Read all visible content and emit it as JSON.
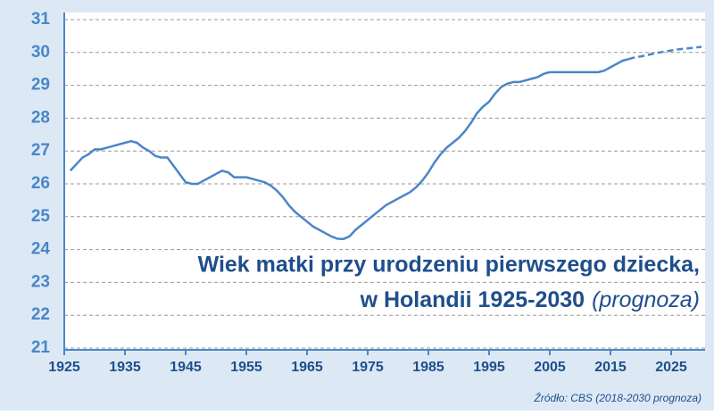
{
  "chart_data": {
    "type": "line",
    "title": "Wiek matki przy urodzeniu pierwszego dziecka,",
    "subtitle": "w Holandii 1925-2030",
    "subtitle_note": "(prognoza)",
    "source": "Źródło: CBS (2018-2030 prognoza)",
    "x": [
      1926,
      1927,
      1928,
      1929,
      1930,
      1931,
      1932,
      1933,
      1934,
      1935,
      1936,
      1937,
      1938,
      1939,
      1940,
      1941,
      1942,
      1943,
      1944,
      1945,
      1946,
      1947,
      1948,
      1949,
      1950,
      1951,
      1952,
      1953,
      1954,
      1955,
      1956,
      1957,
      1958,
      1959,
      1960,
      1961,
      1962,
      1963,
      1964,
      1965,
      1966,
      1967,
      1968,
      1969,
      1970,
      1971,
      1972,
      1973,
      1974,
      1975,
      1976,
      1977,
      1978,
      1979,
      1980,
      1981,
      1982,
      1983,
      1984,
      1985,
      1986,
      1987,
      1988,
      1989,
      1990,
      1991,
      1992,
      1993,
      1994,
      1995,
      1996,
      1997,
      1998,
      1999,
      2000,
      2001,
      2002,
      2003,
      2004,
      2005,
      2006,
      2007,
      2008,
      2009,
      2010,
      2011,
      2012,
      2013,
      2014,
      2015,
      2016,
      2017,
      2018,
      2019,
      2020,
      2021,
      2022,
      2023,
      2024,
      2025,
      2026,
      2027,
      2028,
      2029,
      2030
    ],
    "series": [
      {
        "color": "#4a86c8",
        "dashed": false,
        "values": [
          26.4,
          26.6,
          26.8,
          26.9,
          27.05,
          27.05,
          27.1,
          27.15,
          27.2,
          27.25,
          27.3,
          27.25,
          27.1,
          27.0,
          26.85,
          26.8,
          26.8,
          26.55,
          26.3,
          26.05,
          26.0,
          26.0,
          26.1,
          26.2,
          26.3,
          26.4,
          26.35,
          26.2,
          26.2,
          26.2,
          26.15,
          26.1,
          26.05,
          25.95,
          25.8,
          25.6,
          25.35,
          25.15,
          25.0,
          24.85,
          24.7,
          24.6,
          24.5,
          24.4,
          24.33,
          24.32,
          24.4,
          24.6,
          24.75,
          24.9,
          25.05,
          25.2,
          25.35,
          25.45,
          25.55,
          25.65,
          25.75,
          25.9,
          26.1,
          26.35,
          26.65,
          26.9,
          27.1,
          27.25,
          27.4,
          27.6,
          27.85,
          28.15,
          28.35,
          28.5,
          28.75,
          28.95,
          29.05,
          29.1,
          29.1,
          29.15,
          29.2,
          29.25,
          29.35,
          29.4,
          29.4,
          29.4,
          29.4,
          29.4,
          29.4,
          29.4,
          29.4,
          29.4,
          29.45,
          29.55,
          29.65,
          29.75,
          29.8,
          null,
          null,
          null,
          null,
          null,
          null,
          null,
          null,
          null,
          null,
          null,
          null
        ]
      },
      {
        "color": "#4a86c8",
        "dashed": true,
        "values": [
          null,
          null,
          null,
          null,
          null,
          null,
          null,
          null,
          null,
          null,
          null,
          null,
          null,
          null,
          null,
          null,
          null,
          null,
          null,
          null,
          null,
          null,
          null,
          null,
          null,
          null,
          null,
          null,
          null,
          null,
          null,
          null,
          null,
          null,
          null,
          null,
          null,
          null,
          null,
          null,
          null,
          null,
          null,
          null,
          null,
          null,
          null,
          null,
          null,
          null,
          null,
          null,
          null,
          null,
          null,
          null,
          null,
          null,
          null,
          null,
          null,
          null,
          null,
          null,
          null,
          null,
          null,
          null,
          null,
          null,
          null,
          null,
          null,
          null,
          null,
          null,
          null,
          null,
          null,
          null,
          null,
          null,
          null,
          null,
          null,
          null,
          null,
          null,
          null,
          null,
          null,
          null,
          29.8,
          29.85,
          29.88,
          29.92,
          29.96,
          30.0,
          30.03,
          30.06,
          30.09,
          30.11,
          30.13,
          30.15,
          30.17
        ]
      }
    ],
    "xlim": [
      1925,
      2030
    ],
    "xticks": [
      1925,
      1935,
      1945,
      1955,
      1965,
      1975,
      1985,
      1995,
      2005,
      2015,
      2025
    ],
    "ylim": [
      21,
      31
    ],
    "yticks": [
      21,
      22,
      23,
      24,
      25,
      26,
      27,
      28,
      29,
      30,
      31
    ],
    "grid": true
  }
}
